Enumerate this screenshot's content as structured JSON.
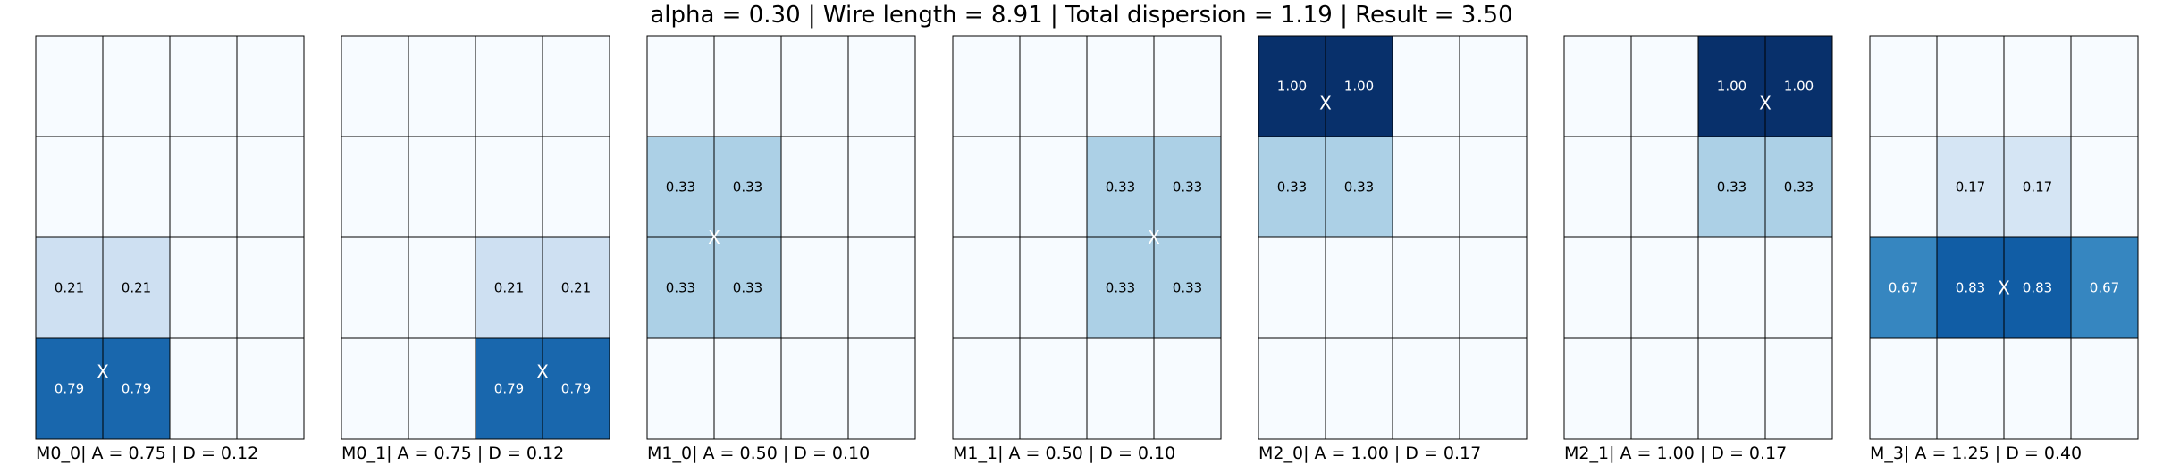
{
  "title": "alpha = 0.30 | Wire length = 8.91 | Total dispersion = 1.19 | Result = 3.50",
  "colors": {
    "grid_line": "#000000",
    "marker": "#ffffff",
    "cmap_low": "#f7fbff",
    "cmap_high": "#08306b"
  },
  "chart_data": [
    {
      "type": "heatmap",
      "label": "M0_0| A = 0.75 | D = 0.12",
      "values": [
        [
          0,
          0,
          0,
          0
        ],
        [
          0,
          0,
          0,
          0
        ],
        [
          0.21,
          0.21,
          0,
          0
        ],
        [
          0.79,
          0.79,
          0,
          0
        ]
      ],
      "center": {
        "col": 1.0,
        "row": 3.33
      },
      "marker": "X"
    },
    {
      "type": "heatmap",
      "label": "M0_1| A = 0.75 | D = 0.12",
      "values": [
        [
          0,
          0,
          0,
          0
        ],
        [
          0,
          0,
          0,
          0
        ],
        [
          0,
          0,
          0.21,
          0.21
        ],
        [
          0,
          0,
          0.79,
          0.79
        ]
      ],
      "center": {
        "col": 3.0,
        "row": 3.33
      },
      "marker": "X"
    },
    {
      "type": "heatmap",
      "label": "M1_0| A = 0.50 | D = 0.10",
      "values": [
        [
          0,
          0,
          0,
          0
        ],
        [
          0.33,
          0.33,
          0,
          0
        ],
        [
          0.33,
          0.33,
          0,
          0
        ],
        [
          0,
          0,
          0,
          0
        ]
      ],
      "center": {
        "col": 1.0,
        "row": 2.0
      },
      "marker": "X"
    },
    {
      "type": "heatmap",
      "label": "M1_1| A = 0.50 | D = 0.10",
      "values": [
        [
          0,
          0,
          0,
          0
        ],
        [
          0,
          0,
          0.33,
          0.33
        ],
        [
          0,
          0,
          0.33,
          0.33
        ],
        [
          0,
          0,
          0,
          0
        ]
      ],
      "center": {
        "col": 3.0,
        "row": 2.0
      },
      "marker": "X"
    },
    {
      "type": "heatmap",
      "label": "M2_0| A = 1.00 | D = 0.17",
      "values": [
        [
          1.0,
          1.0,
          0,
          0
        ],
        [
          0.33,
          0.33,
          0,
          0
        ],
        [
          0,
          0,
          0,
          0
        ],
        [
          0,
          0,
          0,
          0
        ]
      ],
      "center": {
        "col": 1.0,
        "row": 0.67
      },
      "marker": "X"
    },
    {
      "type": "heatmap",
      "label": "M2_1| A = 1.00 | D = 0.17",
      "values": [
        [
          0,
          0,
          1.0,
          1.0
        ],
        [
          0,
          0,
          0.33,
          0.33
        ],
        [
          0,
          0,
          0,
          0
        ],
        [
          0,
          0,
          0,
          0
        ]
      ],
      "center": {
        "col": 3.0,
        "row": 0.67
      },
      "marker": "X"
    },
    {
      "type": "heatmap",
      "label": "M_3| A = 1.25 | D = 0.40",
      "values": [
        [
          0,
          0,
          0,
          0
        ],
        [
          0,
          0.17,
          0.17,
          0
        ],
        [
          0.67,
          0.83,
          0.83,
          0.67
        ],
        [
          0,
          0,
          0,
          0
        ]
      ],
      "center": {
        "col": 2.0,
        "row": 2.5
      },
      "marker": "X"
    }
  ]
}
